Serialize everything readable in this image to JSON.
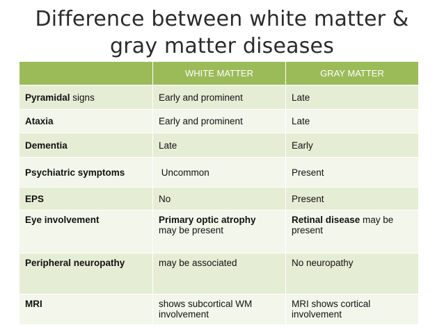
{
  "title": {
    "line1": "Difference between white matter &",
    "line2": "gray matter diseases"
  },
  "table": {
    "headers": [
      "",
      "WHITE MATTER",
      "GRAY MATTER"
    ],
    "rows": [
      {
        "label_bold": "Pyramidal",
        "label_rest": " signs",
        "white": "Early and prominent",
        "gray": "Late"
      },
      {
        "label_bold": "Ataxia",
        "label_rest": "",
        "white": "Early and prominent",
        "gray": "Late"
      },
      {
        "label_bold": "Dementia",
        "label_rest": "",
        "white": "Late",
        "gray": "Early"
      },
      {
        "label_bold": "Psychiatric symptoms",
        "label_rest": "",
        "white": " Uncommon",
        "gray": "Present"
      },
      {
        "label_bold": "EPS",
        "label_rest": "",
        "white": "No",
        "gray": "Present"
      },
      {
        "label_bold": "Eye involvement",
        "label_rest": "",
        "white_bold": "Primary optic atrophy",
        "white_rest": "may be present",
        "gray_bold": "Retinal disease",
        "gray_rest": " may be present"
      },
      {
        "label_bold": "Peripheral neuropathy",
        "label_rest": "",
        "white": "may be associated",
        "gray": "No neuropathy"
      },
      {
        "label_bold": "MRI",
        "label_rest": "",
        "white_line1": "shows subcortical WM",
        "white_line2": "involvement",
        "gray_line1": "MRI shows cortical",
        "gray_line2": "involvement"
      }
    ]
  }
}
